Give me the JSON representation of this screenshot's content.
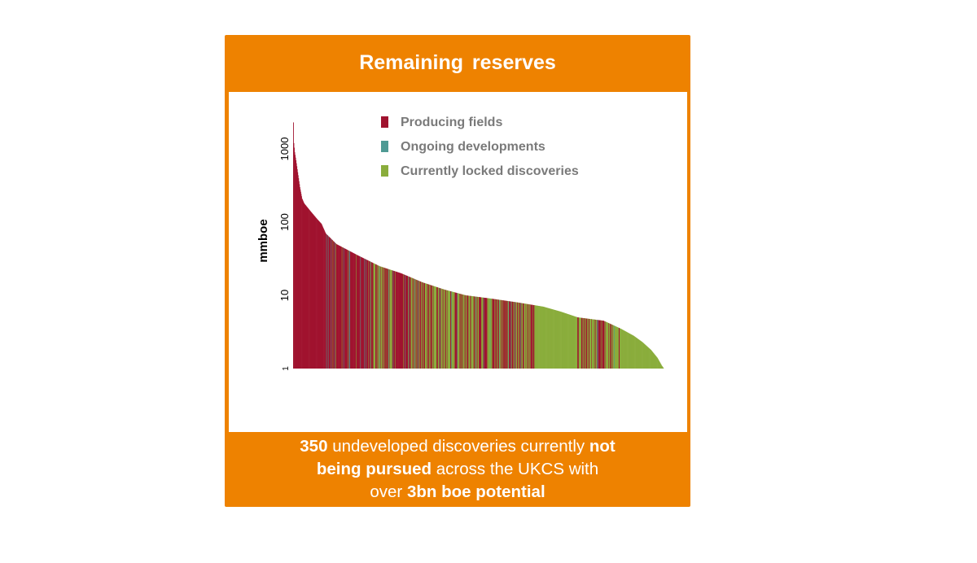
{
  "title": "Remaining reserves",
  "footer": {
    "line1": {
      "strong1": "350",
      "text1": " undeveloped discoveries currently ",
      "strong2": "not"
    },
    "line2": {
      "strong1": "being pursued",
      "text1": "  across the UKCS with"
    },
    "line3": {
      "text1": "over ",
      "strong1": "3bn boe potential"
    }
  },
  "colors": {
    "card_orange": "#ee8200",
    "producing": "#a0132f",
    "ongoing": "#4e9a94",
    "locked": "#8aad3c"
  },
  "chart_data": {
    "type": "bar",
    "ylabel": "mmboe",
    "xlabel": "",
    "yscale": "log",
    "ylim": [
      1,
      2500
    ],
    "yticks": [
      1,
      10,
      100,
      1000
    ],
    "ytick_labels": [
      "1",
      "10",
      "100",
      "1000"
    ],
    "legend": {
      "position": "top-right",
      "entries": [
        {
          "label": "Producing fields",
          "color": "#a0132f"
        },
        {
          "label": "Ongoing developments",
          "color": "#4e9a94"
        },
        {
          "label": "Currently locked discoveries",
          "color": "#8aad3c"
        }
      ]
    },
    "series": [
      {
        "name": "Producing fields",
        "color": "#a0132f"
      },
      {
        "name": "Ongoing developments",
        "color": "#4e9a94"
      },
      {
        "name": "Currently locked discoveries",
        "color": "#8aad3c"
      }
    ],
    "curve_points": [
      [
        0,
        2300
      ],
      [
        1,
        1200
      ],
      [
        3,
        900
      ],
      [
        6,
        700
      ],
      [
        10,
        480
      ],
      [
        15,
        300
      ],
      [
        20,
        210
      ],
      [
        25,
        180
      ],
      [
        40,
        140
      ],
      [
        55,
        110
      ],
      [
        65,
        95
      ],
      [
        75,
        70
      ],
      [
        100,
        50
      ],
      [
        150,
        35
      ],
      [
        200,
        25
      ],
      [
        250,
        20
      ],
      [
        300,
        15
      ],
      [
        350,
        12
      ],
      [
        400,
        10
      ],
      [
        460,
        9
      ],
      [
        520,
        8
      ],
      [
        580,
        7
      ],
      [
        620,
        6
      ],
      [
        660,
        5
      ],
      [
        720,
        4.5
      ],
      [
        760,
        3.5
      ],
      [
        790,
        2.8
      ],
      [
        810,
        2.3
      ],
      [
        830,
        1.8
      ],
      [
        845,
        1.4
      ],
      [
        855,
        1.1
      ],
      [
        860,
        1
      ]
    ],
    "segments": [
      {
        "from": 0,
        "to": 75,
        "category": "producing"
      },
      {
        "from": 75,
        "to": 180,
        "category": "producing",
        "mix": "ongoing"
      },
      {
        "from": 180,
        "to": 300,
        "category": "producing",
        "mix": "locked"
      },
      {
        "from": 300,
        "to": 460,
        "category": "locked",
        "mix": "producing"
      },
      {
        "from": 460,
        "to": 560,
        "category": "producing",
        "mix": "locked"
      },
      {
        "from": 560,
        "to": 660,
        "category": "locked"
      },
      {
        "from": 660,
        "to": 760,
        "category": "locked",
        "mix": "producing"
      },
      {
        "from": 760,
        "to": 860,
        "category": "locked"
      }
    ],
    "total_fields": 860
  }
}
